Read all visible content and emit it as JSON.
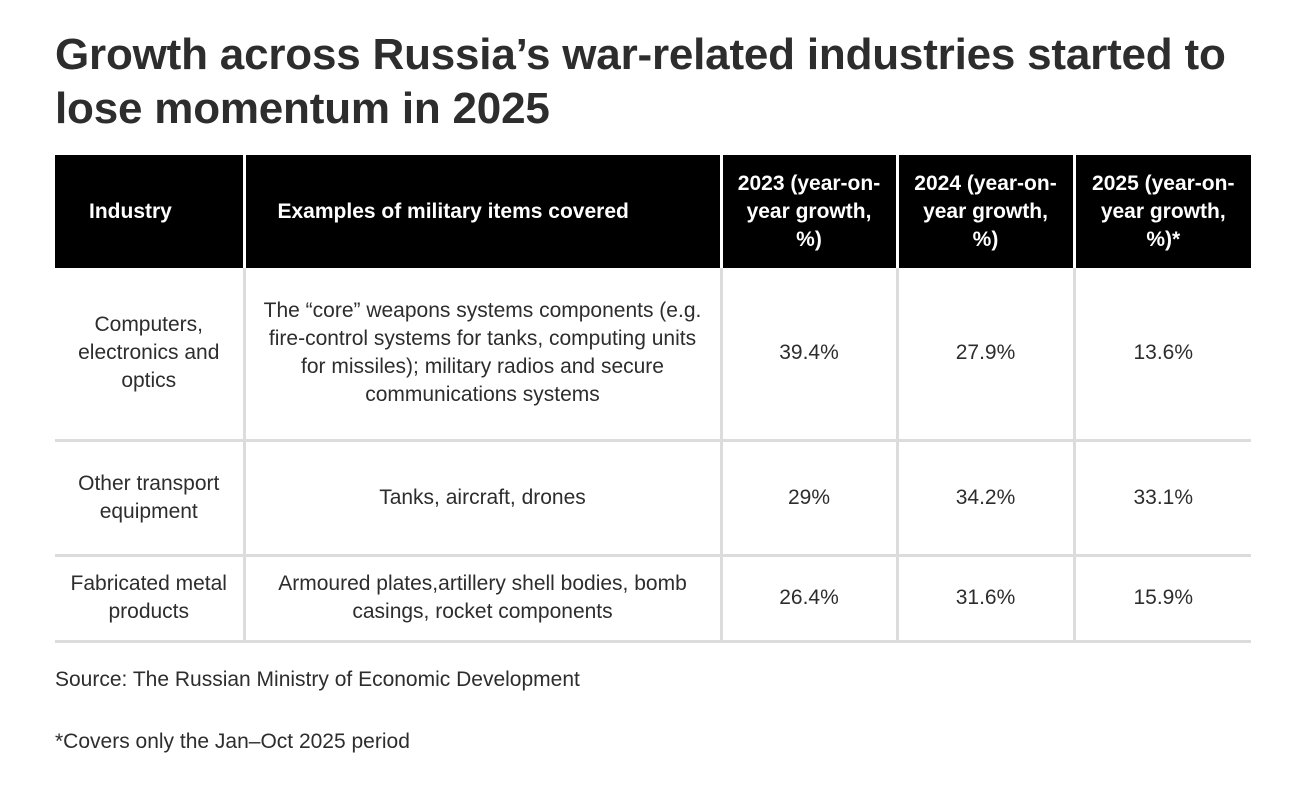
{
  "title": "Growth across Russia’s war-related industries started to lose momentum in 2025",
  "table": {
    "headers": {
      "industry": "Industry",
      "examples": "Examples of military items covered",
      "y2023": "2023 (year-on-year growth, %)",
      "y2024": "2024 (year-on-year growth, %)",
      "y2025": "2025 (year-on-year growth, %)*"
    },
    "rows": [
      {
        "industry": "Computers, electronics and optics",
        "examples": "The “core” weapons systems components (e.g. fire-control systems for tanks, computing units for missiles); military radios and secure communications systems",
        "y2023": "39.4%",
        "y2024": "27.9%",
        "y2025": "13.6%"
      },
      {
        "industry": "Other transport equipment",
        "examples": "Tanks, aircraft, drones",
        "y2023": "29%",
        "y2024": "34.2%",
        "y2025": "33.1%"
      },
      {
        "industry": "Fabricated metal products",
        "examples": "Armoured plates,artillery shell bodies, bomb casings, rocket components",
        "y2023": "26.4%",
        "y2024": "31.6%",
        "y2025": "15.9%"
      }
    ]
  },
  "source": "Source: The Russian Ministry of Economic Development",
  "footnote": "*Covers only the Jan–Oct 2025 period",
  "colors": {
    "header_bg": "#000000",
    "header_text": "#ffffff",
    "grid_line": "#dcdcdc",
    "body_text": "#2d2d2d"
  }
}
